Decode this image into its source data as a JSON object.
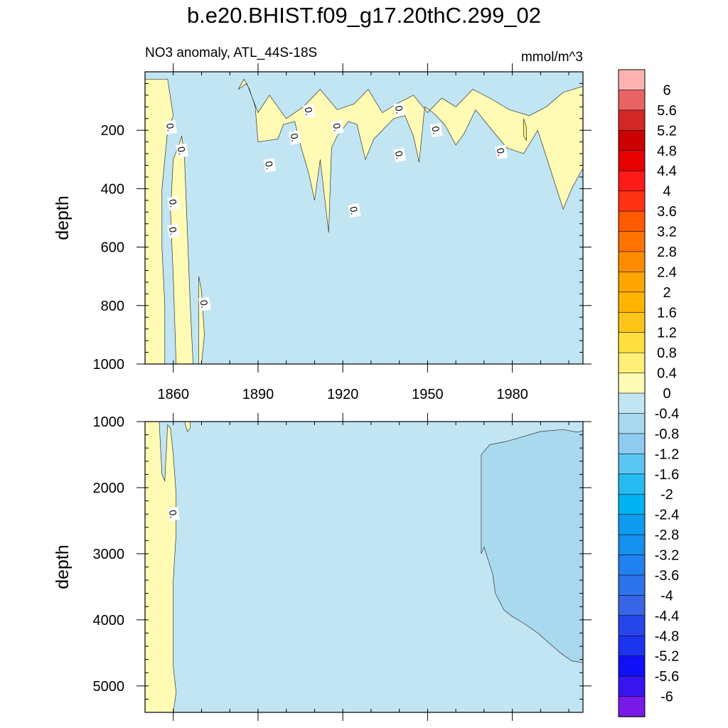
{
  "title": "b.e20.BHIST.f09_g17.20thC.299_02",
  "subtitle_left": "NO3 anomaly, ATL_44S-18S",
  "subtitle_right": "mmol/m^3",
  "colors": {
    "zero_to_neg": "#c2e5f3",
    "neg_0_4": "#a9d9ef",
    "pos_0_4": "#fffbb4",
    "pos_0_8": "#fff07a",
    "contour_line": "#333333"
  },
  "chart_data": [
    {
      "type": "heatmap",
      "panel": "upper",
      "title": "",
      "xlabel": "",
      "ylabel": "depth",
      "xlim": [
        1850,
        2005
      ],
      "ylim": [
        1000,
        0
      ],
      "x_ticks": [
        1860,
        1890,
        1920,
        1950,
        1980
      ],
      "y_ticks": [
        200,
        400,
        600,
        800,
        1000
      ],
      "background_value_range": [
        -0.4,
        0
      ],
      "contour_labels": [
        {
          "x": 1859,
          "y": 190,
          "text": "0."
        },
        {
          "x": 1863,
          "y": 270,
          "text": "0."
        },
        {
          "x": 1860,
          "y": 450,
          "text": "0."
        },
        {
          "x": 1860,
          "y": 545,
          "text": "0."
        },
        {
          "x": 1871,
          "y": 795,
          "text": "0."
        },
        {
          "x": 1894,
          "y": 320,
          "text": "0."
        },
        {
          "x": 1903,
          "y": 225,
          "text": "0."
        },
        {
          "x": 1908,
          "y": 135,
          "text": "0."
        },
        {
          "x": 1918,
          "y": 190,
          "text": "0."
        },
        {
          "x": 1924,
          "y": 475,
          "text": "0."
        },
        {
          "x": 1940,
          "y": 285,
          "text": "0."
        },
        {
          "x": 1940,
          "y": 130,
          "text": "0."
        },
        {
          "x": 1953,
          "y": 200,
          "text": "0."
        },
        {
          "x": 1976,
          "y": 275,
          "text": "0."
        }
      ],
      "positive_regions": [
        {
          "value_range": [
            0,
            0.4
          ],
          "polygon": [
            [
              1850,
              25
            ],
            [
              1858,
              25
            ],
            [
              1859,
              90
            ],
            [
              1860,
              150
            ],
            [
              1858,
              200
            ],
            [
              1856,
              400
            ],
            [
              1856,
              600
            ],
            [
              1857,
              800
            ],
            [
              1857,
              1000
            ],
            [
              1850,
              1000
            ]
          ]
        },
        {
          "value_range": [
            0,
            0.4
          ],
          "polygon": [
            [
              1860,
              300
            ],
            [
              1862,
              250
            ],
            [
              1863,
              220
            ],
            [
              1864,
              300
            ],
            [
              1865,
              550
            ],
            [
              1866,
              800
            ],
            [
              1867,
              1000
            ],
            [
              1861,
              1000
            ],
            [
              1860,
              700
            ],
            [
              1859,
              480
            ]
          ]
        },
        {
          "value_range": [
            0,
            0.4
          ],
          "polygon": [
            [
              1869,
              700
            ],
            [
              1870,
              750
            ],
            [
              1871,
              900
            ],
            [
              1870,
              1000
            ],
            [
              1869,
              1000
            ]
          ]
        },
        {
          "value_range": [
            0,
            0.4
          ],
          "polygon": [
            [
              1883,
              60
            ],
            [
              1885,
              25
            ],
            [
              1887,
              60
            ],
            [
              1889,
              120
            ],
            [
              1890,
              240
            ],
            [
              1897,
              230
            ],
            [
              1899,
              180
            ],
            [
              1903,
              170
            ],
            [
              1905,
              250
            ],
            [
              1908,
              350
            ],
            [
              1910,
              440
            ],
            [
              1912,
              300
            ],
            [
              1915,
              550
            ],
            [
              1916,
              260
            ],
            [
              1918,
              220
            ],
            [
              1922,
              170
            ],
            [
              1925,
              180
            ],
            [
              1928,
              300
            ],
            [
              1931,
              230
            ],
            [
              1934,
              200
            ],
            [
              1938,
              160
            ],
            [
              1942,
              150
            ],
            [
              1945,
              220
            ],
            [
              1947,
              310
            ],
            [
              1949,
              120
            ],
            [
              1952,
              140
            ],
            [
              1956,
              180
            ],
            [
              1960,
              250
            ],
            [
              1963,
              210
            ],
            [
              1967,
              130
            ],
            [
              1972,
              190
            ],
            [
              1978,
              260
            ],
            [
              1984,
              280
            ],
            [
              1989,
              200
            ],
            [
              1993,
              320
            ],
            [
              1998,
              470
            ],
            [
              2001,
              400
            ],
            [
              2005,
              330
            ],
            [
              2005,
              50
            ],
            [
              1998,
              70
            ],
            [
              1992,
              120
            ],
            [
              1986,
              150
            ],
            [
              1979,
              130
            ],
            [
              1972,
              90
            ],
            [
              1966,
              60
            ],
            [
              1960,
              120
            ],
            [
              1955,
              90
            ],
            [
              1950,
              140
            ],
            [
              1945,
              80
            ],
            [
              1939,
              110
            ],
            [
              1934,
              140
            ],
            [
              1929,
              60
            ],
            [
              1924,
              110
            ],
            [
              1918,
              130
            ],
            [
              1912,
              60
            ],
            [
              1906,
              120
            ],
            [
              1900,
              160
            ],
            [
              1894,
              80
            ],
            [
              1890,
              140
            ],
            [
              1886,
              40
            ]
          ]
        }
      ],
      "small_high_regions": [
        {
          "value_range": [
            0.4,
            0.8
          ],
          "polygon": [
            [
              1984,
              160
            ],
            [
              1985,
              190
            ],
            [
              1985,
              235
            ],
            [
              1984,
              220
            ]
          ]
        }
      ]
    },
    {
      "type": "heatmap",
      "panel": "lower",
      "title": "",
      "xlabel": "",
      "ylabel": "depth",
      "xlim": [
        1850,
        2005
      ],
      "ylim": [
        5400,
        1000
      ],
      "x_ticks": [
        1860,
        1890,
        1920,
        1950,
        1980
      ],
      "y_ticks": [
        1000,
        2000,
        3000,
        4000,
        5000
      ],
      "background_value_range": [
        -0.4,
        0
      ],
      "contour_labels": [
        {
          "x": 1860,
          "y": 2400,
          "text": "0."
        }
      ],
      "positive_regions": [
        {
          "value_range": [
            0,
            0.4
          ],
          "polygon": [
            [
              1850,
              1000
            ],
            [
              1855,
              1000
            ],
            [
              1856,
              1800
            ],
            [
              1857,
              1900
            ],
            [
              1858,
              1050
            ],
            [
              1859,
              1100
            ],
            [
              1860,
              1500
            ],
            [
              1861,
              2100
            ],
            [
              1861,
              2700
            ],
            [
              1860,
              3400
            ],
            [
              1860,
              4100
            ],
            [
              1860,
              4700
            ],
            [
              1861,
              5100
            ],
            [
              1860,
              5400
            ],
            [
              1850,
              5400
            ]
          ]
        },
        {
          "value_range": [
            0,
            0.4
          ],
          "polygon": [
            [
              1864,
              1000
            ],
            [
              1866,
              1000
            ],
            [
              1866,
              1100
            ],
            [
              1865,
              1150
            ]
          ]
        }
      ],
      "negative_regions": [
        {
          "value_range": [
            -0.8,
            -0.4
          ],
          "polygon": [
            [
              1969,
              3000
            ],
            [
              1969,
              1500
            ],
            [
              1972,
              1350
            ],
            [
              1978,
              1300
            ],
            [
              1990,
              1150
            ],
            [
              1998,
              1120
            ],
            [
              2003,
              1160
            ],
            [
              2005,
              1140
            ],
            [
              2005,
              4650
            ],
            [
              2001,
              4620
            ],
            [
              1997,
              4500
            ],
            [
              1993,
              4350
            ],
            [
              1989,
              4200
            ],
            [
              1984,
              4050
            ],
            [
              1980,
              3950
            ],
            [
              1977,
              3850
            ],
            [
              1974,
              3600
            ],
            [
              1973,
              3300
            ],
            [
              1970,
              2900
            ]
          ]
        }
      ]
    },
    {
      "type": "heatmap",
      "panel": "colorbar",
      "title": "",
      "levels": [
        "6",
        "5.6",
        "5.2",
        "4.8",
        "4.4",
        "4",
        "3.6",
        "3.2",
        "2.8",
        "2.4",
        "2",
        "1.6",
        "1.2",
        "0.8",
        "0.4",
        "0",
        "-0.4",
        "-0.8",
        "-1.2",
        "-1.6",
        "-2",
        "-2.4",
        "-2.8",
        "-3.2",
        "-3.6",
        "-4",
        "-4.4",
        "-4.8",
        "-5.2",
        "-5.6",
        "-6"
      ],
      "colors": [
        "#ffb3b3",
        "#e86464",
        "#d42828",
        "#cc0000",
        "#e60000",
        "#ff1a1a",
        "#ff3314",
        "#ff5a00",
        "#ff7300",
        "#ff8c00",
        "#ffa500",
        "#ffb400",
        "#ffc41a",
        "#ffe040",
        "#fff07a",
        "#fffbb4",
        "#c2e5f3",
        "#a9d9ef",
        "#8fcbef",
        "#5cc6f2",
        "#27bbf2",
        "#00b2f0",
        "#0f9bf0",
        "#1590ed",
        "#2081ef",
        "#2c74ea",
        "#3765e6",
        "#2646ec",
        "#1d34ee",
        "#1010f6",
        "#3815f0",
        "#7a1aea"
      ]
    }
  ]
}
